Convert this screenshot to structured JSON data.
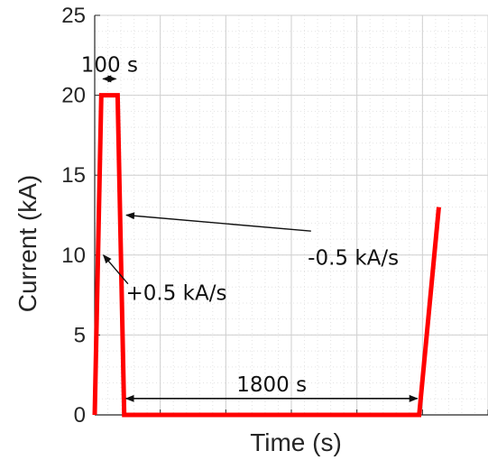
{
  "chart_data": {
    "type": "line",
    "xlabel": "Time (s)",
    "ylabel": "Current (kA)",
    "ylim": [
      0,
      25
    ],
    "xlim": [
      0,
      2400
    ],
    "yticks": [
      0,
      5,
      10,
      15,
      20,
      25
    ],
    "grid": true,
    "line_color": "#ff0000",
    "series": [
      {
        "x": [
          0,
          40,
          140,
          180,
          1980,
          2100
        ],
        "y": [
          0,
          20,
          20,
          0,
          0,
          13
        ]
      }
    ],
    "annotations": [
      {
        "id": "ramp-up",
        "text": "+0.5 kA/s",
        "x": 190,
        "y": 7.2,
        "arrow_from": [
          203,
          8.2
        ],
        "arrow_to": [
          20,
          10
        ]
      },
      {
        "id": "ramp-down",
        "text": "-0.5 kA/s",
        "x": 1300,
        "y": 9.4,
        "arrow_from": [
          1320,
          11.5
        ],
        "arrow_to": [
          160,
          12.5
        ]
      },
      {
        "id": "flat-top",
        "text": "100 s",
        "span": [
          40,
          140
        ],
        "y": 20.8
      },
      {
        "id": "flat-bottom",
        "text": "1800 s",
        "span": [
          180,
          1980
        ],
        "y": 0.8
      }
    ]
  }
}
